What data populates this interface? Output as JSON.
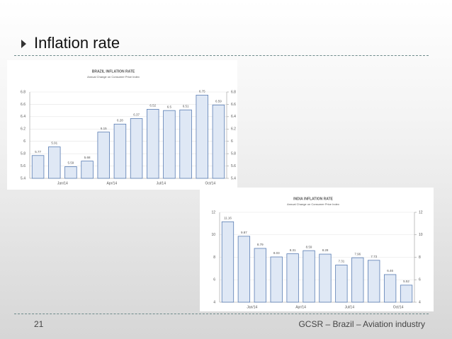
{
  "slide": {
    "title": "Inflation rate",
    "page_number": "21",
    "footer": "GCSR – Brazil – Aviation industry"
  },
  "chart_data": [
    {
      "type": "bar",
      "title": "BRAZIL INFLATION RATE",
      "subtitle": "Annual Change on Consumer Price Index",
      "categories": [
        null,
        null,
        "Jan/14",
        null,
        null,
        "Apr/14",
        null,
        null,
        "Jul/14",
        null,
        null,
        "Oct/14"
      ],
      "values": [
        5.77,
        5.91,
        5.59,
        5.68,
        6.15,
        6.28,
        6.37,
        6.52,
        6.5,
        6.51,
        6.75,
        6.59
      ],
      "color": "#dfe8f5",
      "edge_color": "#5a7db3",
      "ylim": [
        5.4,
        6.8
      ],
      "yticks": [
        5.4,
        5.6,
        5.8,
        6,
        6.2,
        6.4,
        6.6,
        6.8
      ],
      "grid": true
    },
    {
      "type": "bar",
      "title": "INDIA INFLATION RATE",
      "subtitle": "Annual Change on Consumer Price Index",
      "categories": [
        null,
        null,
        "Jan/14",
        null,
        null,
        "Apr/14",
        null,
        null,
        "Jul/14",
        null,
        null,
        "Oct/14"
      ],
      "values": [
        11.16,
        9.87,
        8.79,
        8.03,
        8.31,
        8.59,
        8.28,
        7.31,
        7.96,
        7.73,
        6.46,
        5.52
      ],
      "color": "#dfe8f5",
      "edge_color": "#5a7db3",
      "ylim": [
        4,
        12
      ],
      "yticks": [
        4,
        6,
        8,
        10,
        12
      ],
      "grid": true
    }
  ]
}
